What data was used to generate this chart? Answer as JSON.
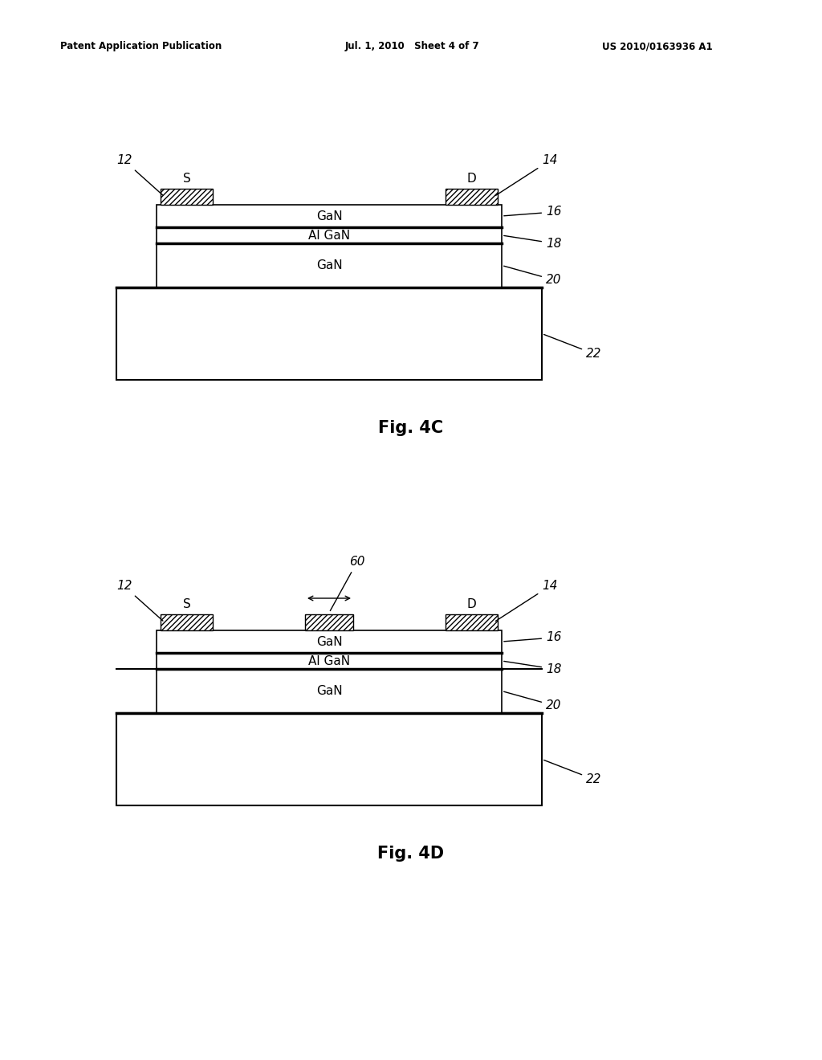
{
  "header_left": "Patent Application Publication",
  "header_center": "Jul. 1, 2010   Sheet 4 of 7",
  "header_right": "US 2010/0163936 A1",
  "fig4c_label": "Fig. 4C",
  "fig4d_label": "Fig. 4D",
  "bg_color": "#ffffff",
  "line_color": "#000000",
  "layer_labels": {
    "gan_top": "GaN",
    "algan": "Al GaN",
    "gan_bot": "GaN"
  },
  "contact_labels": {
    "S": "S",
    "D": "D"
  }
}
